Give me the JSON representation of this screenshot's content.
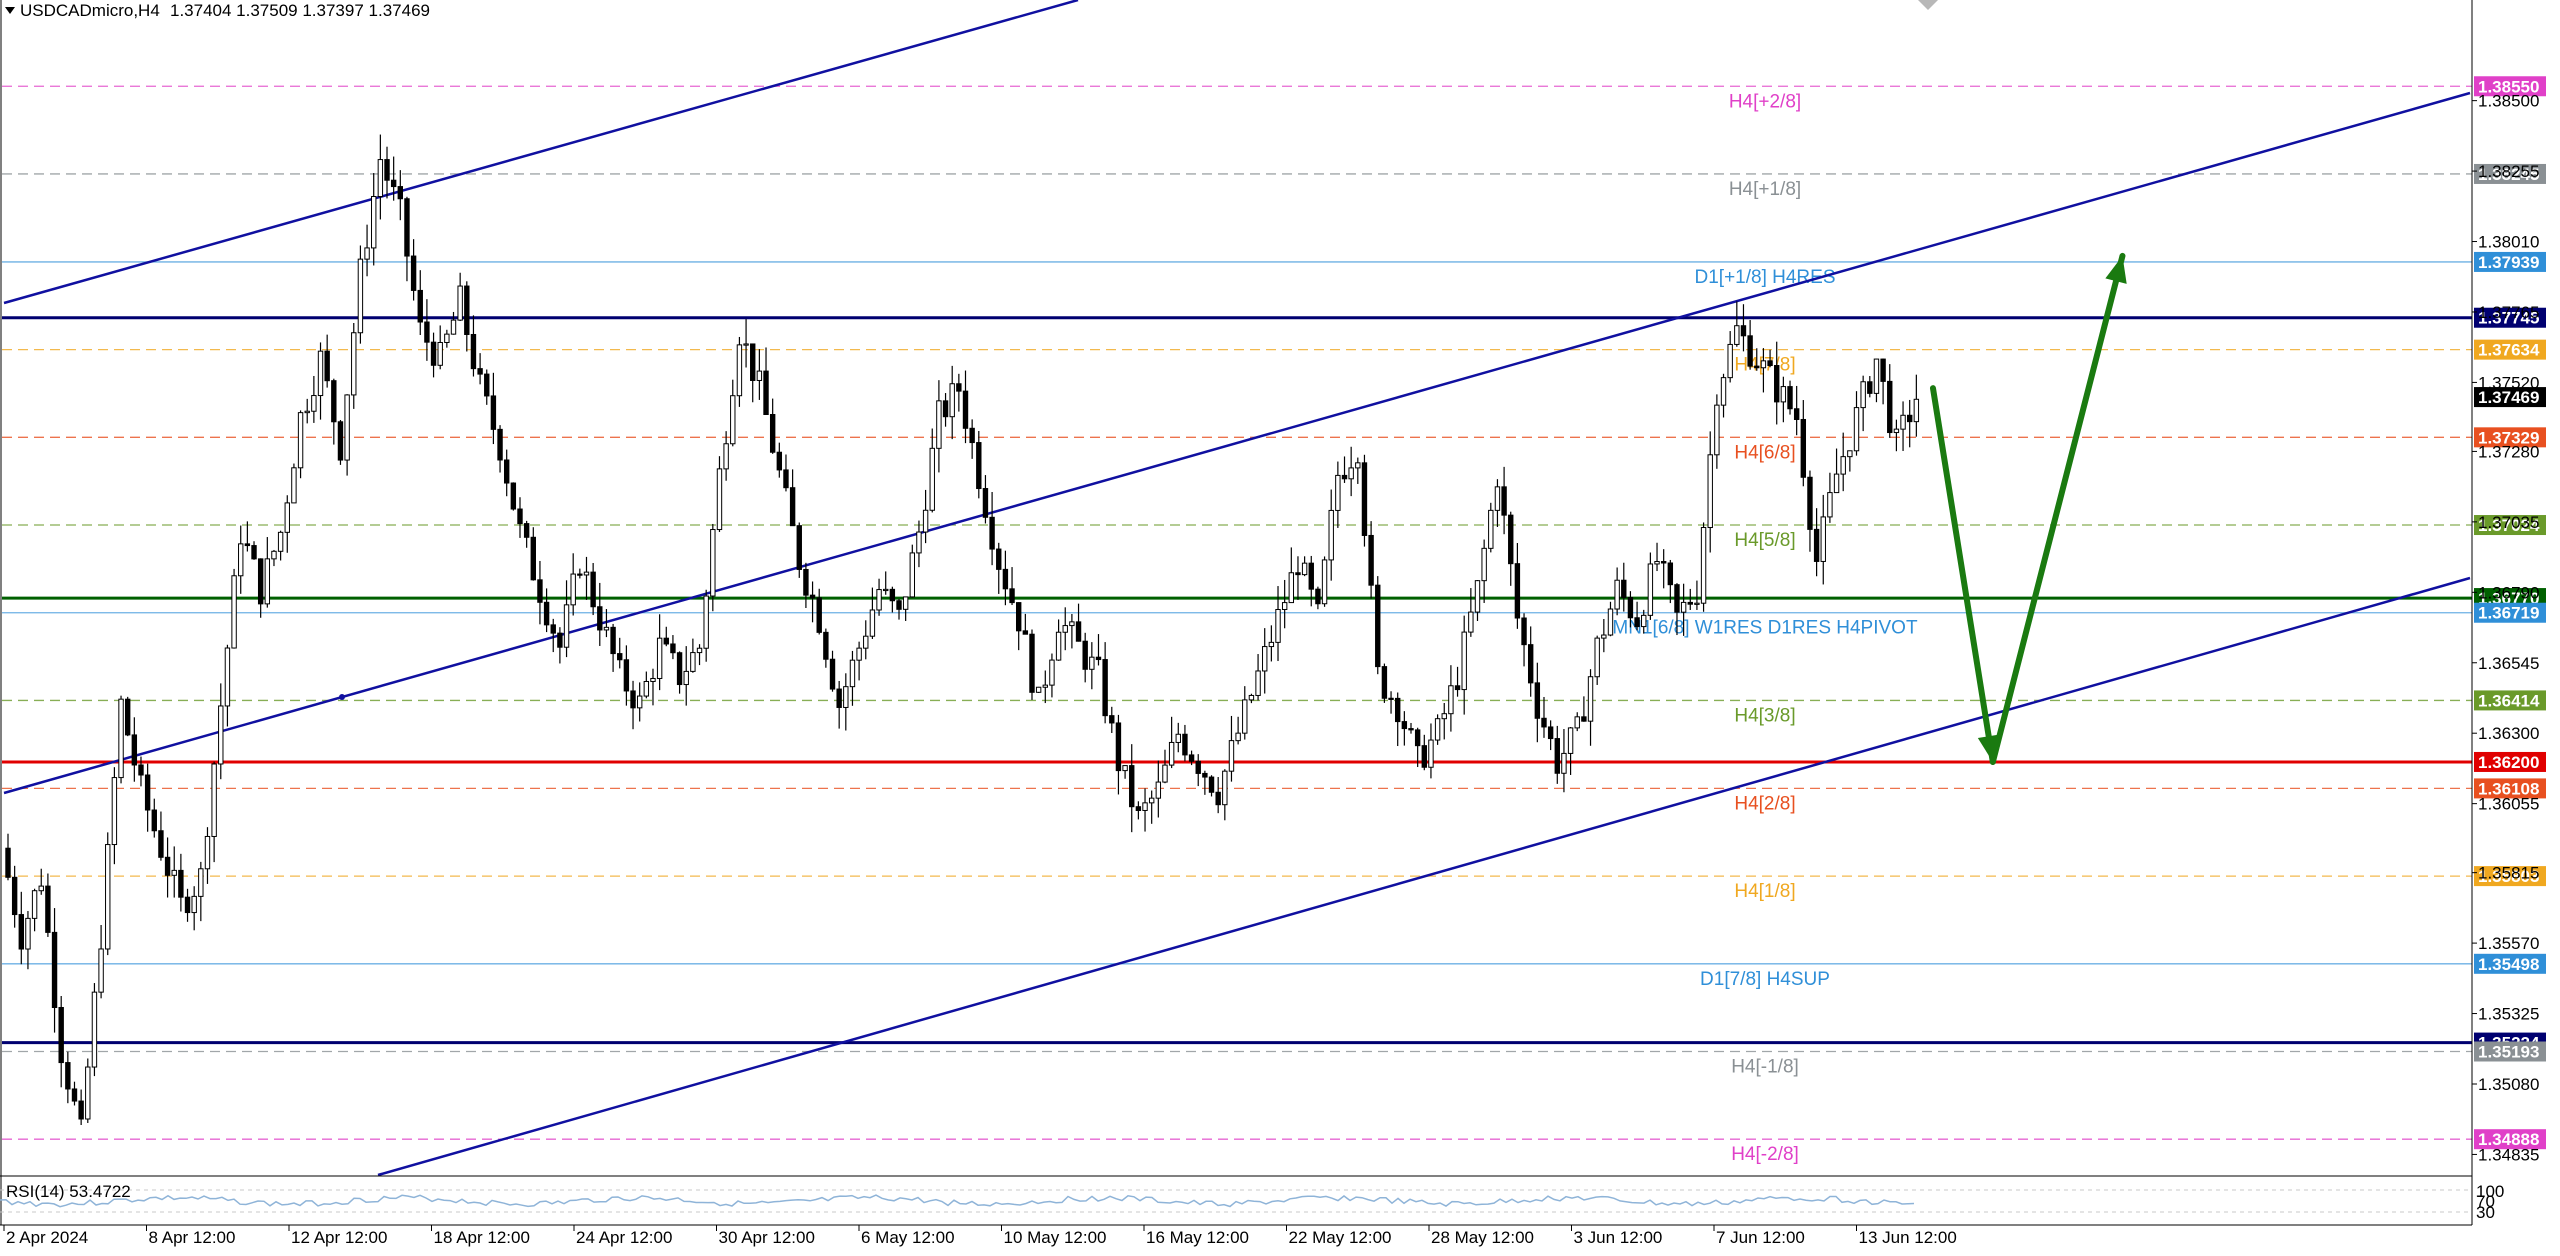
{
  "header": {
    "symbol": "USDCADmicro,H4",
    "ohlc": "1.37404 1.37509 1.37397 1.37469"
  },
  "rsi": {
    "label": "RSI(14) 53.4722",
    "scale_top": "100",
    "scale_mid": "70",
    "scale_bottom": "30"
  },
  "chart_data": {
    "type": "candlestick",
    "symbol": "USDCADmicro",
    "timeframe": "H4",
    "current_price": 1.37469,
    "ylim": [
      1.3476,
      1.3885
    ],
    "y_ticks": [
      "1.38500",
      "1.38255",
      "1.38010",
      "1.37765",
      "1.37520",
      "1.37280",
      "1.37035",
      "1.36790",
      "1.36545",
      "1.36300",
      "1.36055",
      "1.35815",
      "1.35570",
      "1.35325",
      "1.35080",
      "1.34835"
    ],
    "x_ticks": [
      "2 Apr 2024",
      "8 Apr 12:00",
      "12 Apr 12:00",
      "18 Apr 12:00",
      "24 Apr 12:00",
      "30 Apr 12:00",
      "6 May 12:00",
      "10 May 12:00",
      "16 May 12:00",
      "22 May 12:00",
      "28 May 12:00",
      "3 Jun 12:00",
      "7 Jun 12:00",
      "13 Jun 12:00"
    ],
    "levels": [
      {
        "label": "H4[+2/8]",
        "price": "1.38550",
        "value": 1.3855,
        "color": "#e040c8",
        "style": "dashed"
      },
      {
        "label": "H4[+1/8]",
        "price": "1.38245",
        "value": 1.38245,
        "color": "#8a9094",
        "style": "dashed"
      },
      {
        "label": "D1[+1/8] H4RES",
        "price": "1.37939",
        "value": 1.37939,
        "color": "#2f8fd8",
        "style": "solid-thin"
      },
      {
        "label": "",
        "price": "1.37745",
        "value": 1.37745,
        "color": "#000070",
        "style": "solid-thick"
      },
      {
        "label": "H4[7/8]",
        "price": "1.37634",
        "value": 1.37634,
        "color": "#f0a820",
        "style": "dashed"
      },
      {
        "label": "",
        "price": "1.37469",
        "value": 1.37469,
        "color": "#000000",
        "style": "none"
      },
      {
        "label": "H4[6/8]",
        "price": "1.37329",
        "value": 1.37329,
        "color": "#e85020",
        "style": "dashed"
      },
      {
        "label": "H4[5/8]",
        "price": "1.37024",
        "value": 1.37024,
        "color": "#6a9a2a",
        "style": "dashed"
      },
      {
        "label": "",
        "price": "1.36770",
        "value": 1.3677,
        "color": "#006000",
        "style": "solid-thick"
      },
      {
        "label": "MN1[6/8] W1RES D1RES H4PIVOT",
        "price": "1.36719",
        "value": 1.36719,
        "color": "#2f8fd8",
        "style": "solid-thin"
      },
      {
        "label": "H4[3/8]",
        "price": "1.36414",
        "value": 1.36414,
        "color": "#6a9a2a",
        "style": "dashed"
      },
      {
        "label": "",
        "price": "1.36200",
        "value": 1.362,
        "color": "#e00000",
        "style": "solid-thick"
      },
      {
        "label": "H4[2/8]",
        "price": "1.36108",
        "value": 1.36108,
        "color": "#e85020",
        "style": "dashed"
      },
      {
        "label": "H4[1/8]",
        "price": "1.35803",
        "value": 1.35803,
        "color": "#f0a820",
        "style": "dashed"
      },
      {
        "label": "D1[7/8] H4SUP",
        "price": "1.35498",
        "value": 1.35498,
        "color": "#2f8fd8",
        "style": "solid-thin"
      },
      {
        "label": "",
        "price": "1.35224",
        "value": 1.35224,
        "color": "#000070",
        "style": "solid-thick"
      },
      {
        "label": "H4[-1/8]",
        "price": "1.35193",
        "value": 1.35193,
        "color": "#8a9094",
        "style": "dashed"
      },
      {
        "label": "H4[-2/8]",
        "price": "1.34888",
        "value": 1.34888,
        "color": "#e040c8",
        "style": "dashed"
      }
    ],
    "price_path": [
      {
        "x": 0,
        "y": 1.359
      },
      {
        "x": 1,
        "y": 1.356
      },
      {
        "x": 2,
        "y": 1.358
      },
      {
        "x": 3,
        "y": 1.352
      },
      {
        "x": 4,
        "y": 1.349
      },
      {
        "x": 5,
        "y": 1.356
      },
      {
        "x": 6,
        "y": 1.364
      },
      {
        "x": 7,
        "y": 1.361
      },
      {
        "x": 8,
        "y": 1.359
      },
      {
        "x": 9,
        "y": 1.357
      },
      {
        "x": 10,
        "y": 1.358
      },
      {
        "x": 11,
        "y": 1.364
      },
      {
        "x": 12,
        "y": 1.37
      },
      {
        "x": 13,
        "y": 1.368
      },
      {
        "x": 14,
        "y": 1.37
      },
      {
        "x": 15,
        "y": 1.374
      },
      {
        "x": 16,
        "y": 1.376
      },
      {
        "x": 17,
        "y": 1.373
      },
      {
        "x": 18,
        "y": 1.379
      },
      {
        "x": 19,
        "y": 1.383
      },
      {
        "x": 20,
        "y": 1.381
      },
      {
        "x": 21,
        "y": 1.377
      },
      {
        "x": 22,
        "y": 1.376
      },
      {
        "x": 23,
        "y": 1.378
      },
      {
        "x": 24,
        "y": 1.375
      },
      {
        "x": 25,
        "y": 1.373
      },
      {
        "x": 26,
        "y": 1.37
      },
      {
        "x": 27,
        "y": 1.368
      },
      {
        "x": 28,
        "y": 1.366
      },
      {
        "x": 29,
        "y": 1.369
      },
      {
        "x": 30,
        "y": 1.367
      },
      {
        "x": 31,
        "y": 1.365
      },
      {
        "x": 32,
        "y": 1.364
      },
      {
        "x": 33,
        "y": 1.366
      },
      {
        "x": 34,
        "y": 1.365
      },
      {
        "x": 35,
        "y": 1.366
      },
      {
        "x": 36,
        "y": 1.372
      },
      {
        "x": 37,
        "y": 1.377
      },
      {
        "x": 38,
        "y": 1.375
      },
      {
        "x": 39,
        "y": 1.372
      },
      {
        "x": 40,
        "y": 1.369
      },
      {
        "x": 41,
        "y": 1.367
      },
      {
        "x": 42,
        "y": 1.364
      },
      {
        "x": 43,
        "y": 1.366
      },
      {
        "x": 44,
        "y": 1.368
      },
      {
        "x": 45,
        "y": 1.367
      },
      {
        "x": 46,
        "y": 1.37
      },
      {
        "x": 47,
        "y": 1.374
      },
      {
        "x": 48,
        "y": 1.375
      },
      {
        "x": 49,
        "y": 1.372
      },
      {
        "x": 50,
        "y": 1.369
      },
      {
        "x": 51,
        "y": 1.367
      },
      {
        "x": 52,
        "y": 1.364
      },
      {
        "x": 53,
        "y": 1.367
      },
      {
        "x": 54,
        "y": 1.366
      },
      {
        "x": 55,
        "y": 1.365
      },
      {
        "x": 56,
        "y": 1.362
      },
      {
        "x": 57,
        "y": 1.36
      },
      {
        "x": 58,
        "y": 1.361
      },
      {
        "x": 59,
        "y": 1.363
      },
      {
        "x": 60,
        "y": 1.362
      },
      {
        "x": 61,
        "y": 1.361
      },
      {
        "x": 62,
        "y": 1.363
      },
      {
        "x": 63,
        "y": 1.365
      },
      {
        "x": 64,
        "y": 1.367
      },
      {
        "x": 65,
        "y": 1.369
      },
      {
        "x": 66,
        "y": 1.367
      },
      {
        "x": 67,
        "y": 1.372
      },
      {
        "x": 68,
        "y": 1.373
      },
      {
        "x": 69,
        "y": 1.365
      },
      {
        "x": 70,
        "y": 1.364
      },
      {
        "x": 71,
        "y": 1.362
      },
      {
        "x": 72,
        "y": 1.363
      },
      {
        "x": 73,
        "y": 1.365
      },
      {
        "x": 74,
        "y": 1.368
      },
      {
        "x": 75,
        "y": 1.372
      },
      {
        "x": 76,
        "y": 1.367
      },
      {
        "x": 77,
        "y": 1.364
      },
      {
        "x": 78,
        "y": 1.362
      },
      {
        "x": 79,
        "y": 1.363
      },
      {
        "x": 80,
        "y": 1.366
      },
      {
        "x": 81,
        "y": 1.368
      },
      {
        "x": 82,
        "y": 1.367
      },
      {
        "x": 83,
        "y": 1.369
      },
      {
        "x": 84,
        "y": 1.367
      },
      {
        "x": 85,
        "y": 1.368
      },
      {
        "x": 86,
        "y": 1.375
      },
      {
        "x": 87,
        "y": 1.377
      },
      {
        "x": 88,
        "y": 1.376
      },
      {
        "x": 89,
        "y": 1.375
      },
      {
        "x": 90,
        "y": 1.374
      },
      {
        "x": 91,
        "y": 1.369
      },
      {
        "x": 92,
        "y": 1.372
      },
      {
        "x": 93,
        "y": 1.374
      },
      {
        "x": 94,
        "y": 1.376
      },
      {
        "x": 95,
        "y": 1.373
      },
      {
        "x": 96,
        "y": 1.3747
      }
    ],
    "annotations": [
      {
        "type": "arrow",
        "color": "#1a7a10",
        "from_x": 96.5,
        "from_y": 1.375,
        "to_x": 99.5,
        "to_y": 1.362
      },
      {
        "type": "arrow",
        "color": "#1a7a10",
        "from_x": 99.5,
        "from_y": 1.362,
        "to_x": 106,
        "to_y": 1.3796
      }
    ]
  }
}
